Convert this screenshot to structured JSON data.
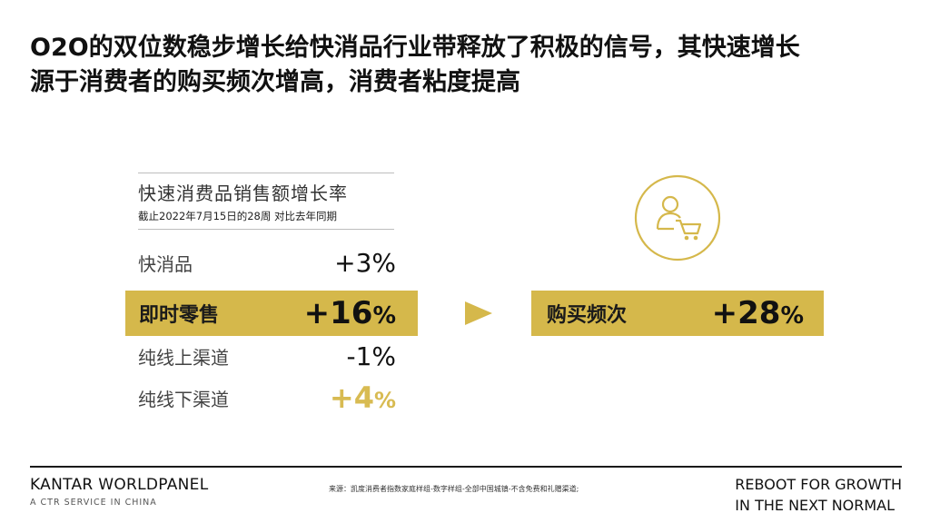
{
  "title": {
    "line1": "O2O的双位数稳步增长给快消品行业带释放了积极的信号，其快速增长",
    "line2": "源于消费者的购买频次增高，消费者粘度提高"
  },
  "panel": {
    "heading": "快速消费品销售额增长率",
    "subheading": "截止2022年7月15日的28周 对比去年同期"
  },
  "rows": [
    {
      "label": "快消品",
      "value": "+3",
      "unit": "%"
    },
    {
      "label": "即时零售",
      "value": "+16",
      "unit": "%"
    },
    {
      "label": "纯线上渠道",
      "value": "-1",
      "unit": "%"
    },
    {
      "label": "纯线下渠道",
      "value": "+4",
      "unit": "%"
    }
  ],
  "right": {
    "label": "购买频次",
    "value": "+28",
    "unit": "%"
  },
  "footer": {
    "brand": "KANTAR WORLDPANEL",
    "brand_sub": "A CTR SERVICE IN CHINA",
    "source": "来源：凯度消费者指数家庭样组-数字样组-全部中国城镇-不含免费和礼赠渠道;",
    "tagline_1": "REBOOT FOR GROWTH",
    "tagline_2": "IN THE NEXT NORMAL"
  },
  "colors": {
    "accent_gold": "#d5b84b",
    "text_dark": "#111111"
  },
  "icons": [
    "shopper-cart-icon",
    "right-arrow-icon"
  ]
}
